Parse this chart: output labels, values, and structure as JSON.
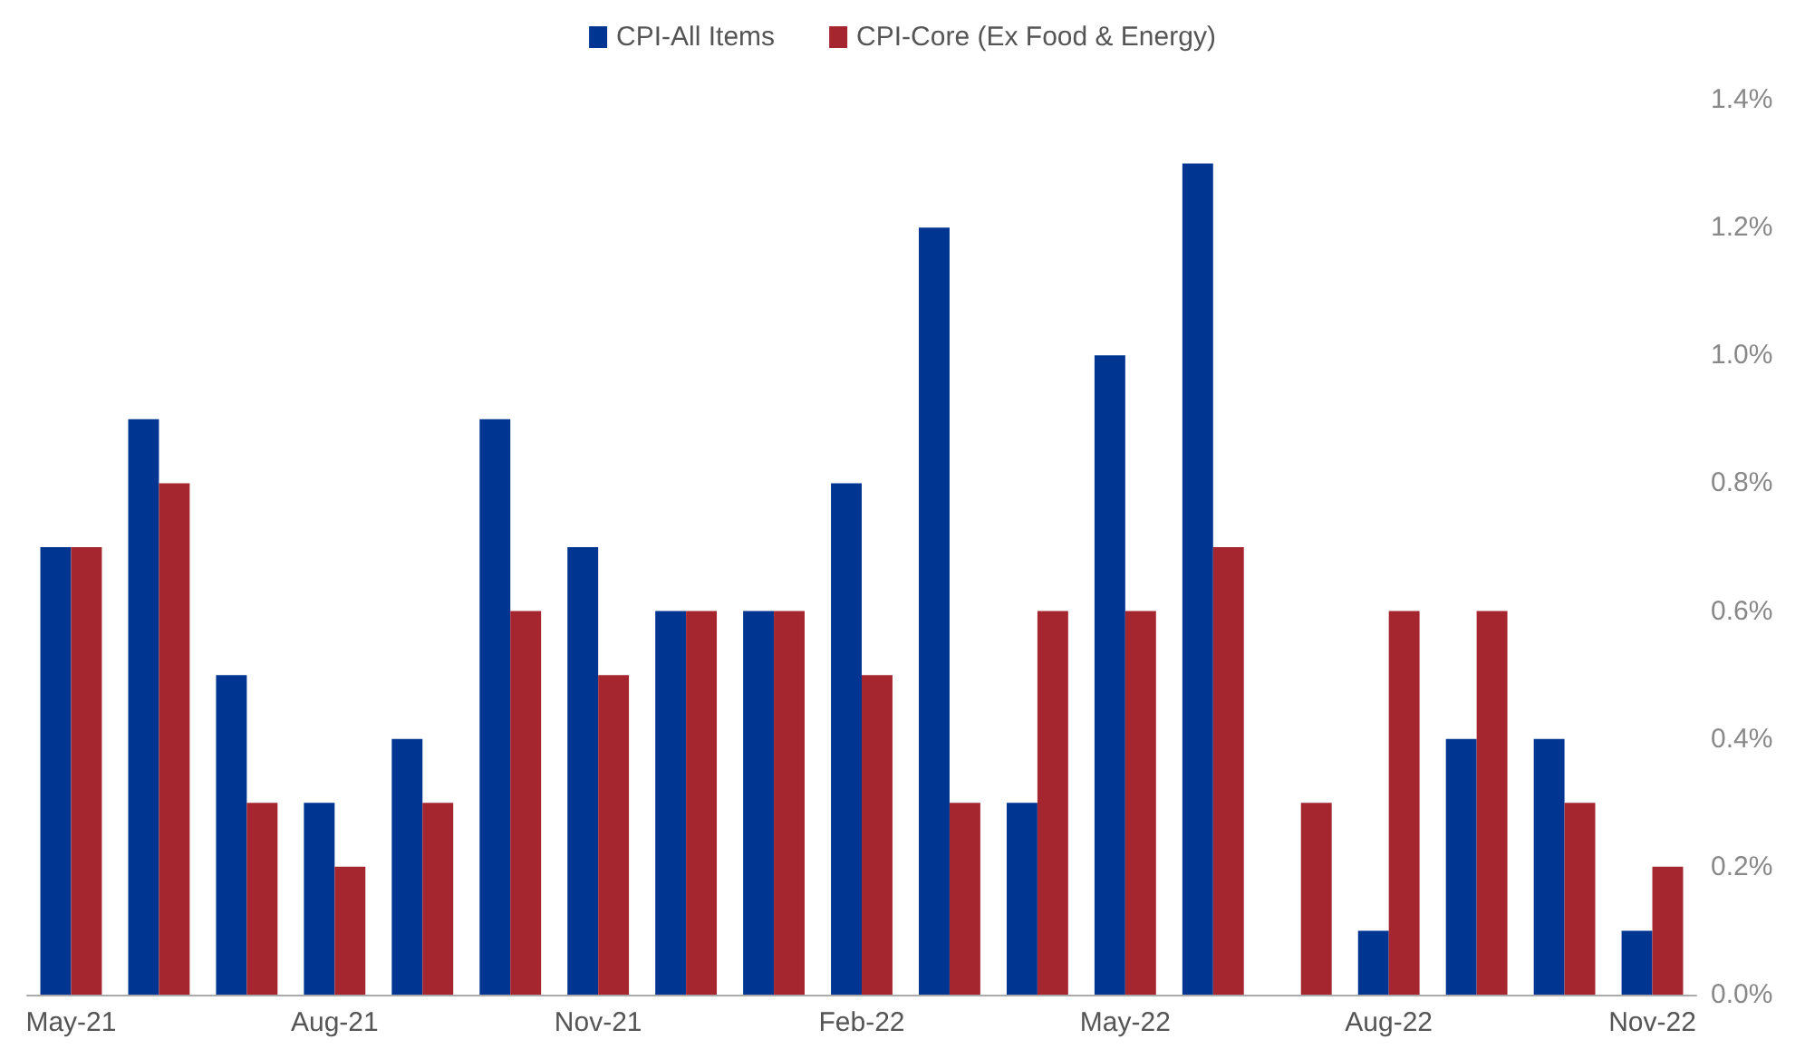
{
  "chart_data": {
    "type": "bar",
    "categories": [
      "May-21",
      null,
      null,
      "Aug-21",
      null,
      null,
      "Nov-21",
      null,
      null,
      "Feb-22",
      null,
      null,
      "May-22",
      null,
      null,
      "Aug-22",
      null,
      null,
      "Nov-22"
    ],
    "series": [
      {
        "name": "CPI-All Items",
        "color": "#003591",
        "values": [
          0.7,
          0.9,
          0.5,
          0.3,
          0.4,
          0.9,
          0.7,
          0.6,
          0.6,
          0.8,
          1.2,
          0.3,
          1.0,
          1.3,
          0.0,
          0.1,
          0.4,
          0.4,
          0.1
        ]
      },
      {
        "name": "CPI-Core (Ex Food & Energy)",
        "color": "#a6262f",
        "values": [
          0.7,
          0.8,
          0.3,
          0.2,
          0.3,
          0.6,
          0.5,
          0.6,
          0.6,
          0.5,
          0.3,
          0.6,
          0.6,
          0.7,
          0.3,
          0.6,
          0.6,
          0.3,
          0.2
        ]
      }
    ],
    "ylim": [
      0,
      1.4
    ],
    "yticks": [
      {
        "value": 0,
        "label": "0.0%"
      },
      {
        "value": 0.2,
        "label": "0.2%"
      },
      {
        "value": 0.4,
        "label": "0.4%"
      },
      {
        "value": 0.6,
        "label": "0.6%"
      },
      {
        "value": 0.8,
        "label": "0.8%"
      },
      {
        "value": 1.0,
        "label": "1.0%"
      },
      {
        "value": 1.2,
        "label": "1.2%"
      },
      {
        "value": 1.4,
        "label": "1.4%"
      }
    ],
    "grid": false,
    "legend": "top"
  }
}
